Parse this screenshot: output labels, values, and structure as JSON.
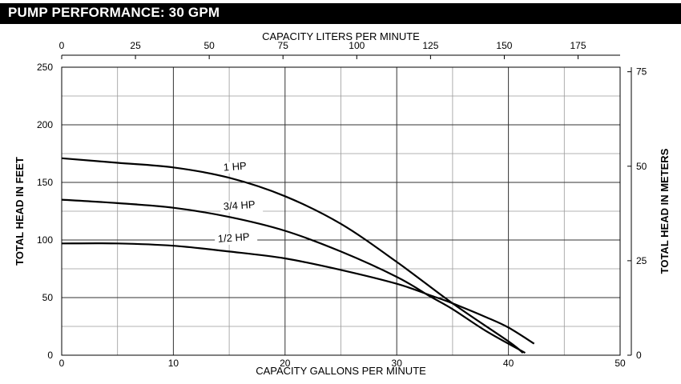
{
  "header": {
    "title": "PUMP PERFORMANCE: 30 GPM"
  },
  "chart_data": {
    "type": "line",
    "xlabel": "CAPACITY GALLONS PER MINUTE",
    "ylabel": "TOTAL HEAD IN FEET",
    "xlim": [
      0,
      50
    ],
    "ylim": [
      0,
      250
    ],
    "x_ticks": [
      0,
      10,
      20,
      30,
      40,
      50
    ],
    "x_minor_ticks": [
      5,
      15,
      25,
      35,
      45
    ],
    "y_ticks": [
      0,
      50,
      100,
      150,
      200,
      250
    ],
    "y_minor_ticks": [
      25,
      75,
      125,
      175,
      225
    ],
    "top_axis": {
      "label": "CAPACITY LITERS PER MINUTE",
      "ticks": [
        0,
        25,
        50,
        75,
        100,
        125,
        150,
        175
      ],
      "gpm_per_unit": 0.2642
    },
    "right_axis": {
      "label": "TOTAL HEAD IN METERS",
      "ticks": [
        0,
        25,
        50,
        75
      ],
      "feet_per_unit": 3.2808
    },
    "grid": true,
    "series": [
      {
        "name": "1 HP",
        "points": [
          [
            0,
            171
          ],
          [
            5,
            167
          ],
          [
            10,
            163
          ],
          [
            15,
            154
          ],
          [
            20,
            138
          ],
          [
            25,
            114
          ],
          [
            30,
            81
          ],
          [
            35,
            45
          ],
          [
            40,
            12
          ],
          [
            41.3,
            2
          ]
        ]
      },
      {
        "name": "3/4 HP",
        "points": [
          [
            0,
            135
          ],
          [
            5,
            132
          ],
          [
            10,
            128
          ],
          [
            15,
            120
          ],
          [
            20,
            108
          ],
          [
            25,
            90
          ],
          [
            30,
            68
          ],
          [
            33,
            51
          ],
          [
            35,
            40
          ],
          [
            38,
            21
          ],
          [
            41.5,
            2
          ]
        ]
      },
      {
        "name": "1/2 HP",
        "points": [
          [
            0,
            97
          ],
          [
            5,
            97
          ],
          [
            10,
            95
          ],
          [
            15,
            90
          ],
          [
            20,
            84
          ],
          [
            25,
            74
          ],
          [
            30,
            62
          ],
          [
            33,
            52
          ],
          [
            35,
            45
          ],
          [
            38,
            33
          ],
          [
            40,
            24
          ],
          [
            42.3,
            10
          ]
        ]
      }
    ]
  }
}
